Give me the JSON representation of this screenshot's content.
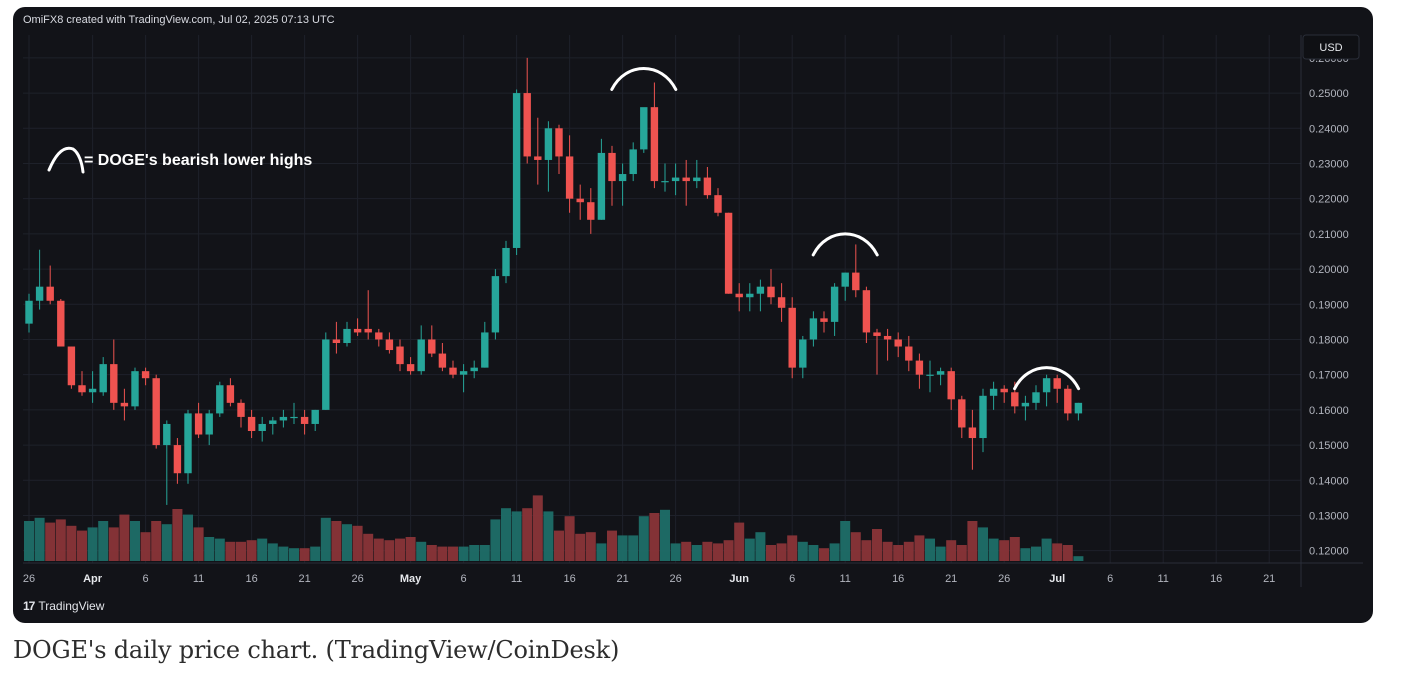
{
  "header": {
    "credit": "OmiFX8 created with TradingView.com, Jul 02, 2025 07:13 UTC"
  },
  "currency": "USD",
  "annotation": {
    "legend_text": "= DOGE's bearish lower highs"
  },
  "footer": {
    "brand": "TradingView",
    "brand_mark": "17"
  },
  "caption": "DOGE's daily price chart. (TradingView/CoinDesk)",
  "colors": {
    "up": "#26a69a",
    "down": "#ef5350",
    "background": "#121318",
    "grid": "#1e212a",
    "axis_text": "#b2b5be"
  },
  "chart_data": {
    "type": "candlestick",
    "title": "",
    "xlabel": "",
    "ylabel": "",
    "ylim": [
      0.1165,
      0.2665
    ],
    "y_ticks": [
      "0.26000",
      "0.25000",
      "0.24000",
      "0.23000",
      "0.22000",
      "0.21000",
      "0.20000",
      "0.19000",
      "0.18000",
      "0.17000",
      "0.16000",
      "0.15000",
      "0.14000",
      "0.13000",
      "0.12000"
    ],
    "x_tick_labels": [
      {
        "label": "26",
        "index": 0
      },
      {
        "label": "Apr",
        "index": 6
      },
      {
        "label": "6",
        "index": 11
      },
      {
        "label": "11",
        "index": 16
      },
      {
        "label": "16",
        "index": 21
      },
      {
        "label": "21",
        "index": 26
      },
      {
        "label": "26",
        "index": 31
      },
      {
        "label": "May",
        "index": 36
      },
      {
        "label": "6",
        "index": 41
      },
      {
        "label": "11",
        "index": 46
      },
      {
        "label": "16",
        "index": 51
      },
      {
        "label": "21",
        "index": 56
      },
      {
        "label": "26",
        "index": 61
      },
      {
        "label": "Jun",
        "index": 67
      },
      {
        "label": "6",
        "index": 72
      },
      {
        "label": "11",
        "index": 77
      },
      {
        "label": "16",
        "index": 82
      },
      {
        "label": "21",
        "index": 87
      },
      {
        "label": "26",
        "index": 92
      },
      {
        "label": "Jul",
        "index": 97
      },
      {
        "label": "6",
        "index": 102
      },
      {
        "label": "11",
        "index": 107
      },
      {
        "label": "16",
        "index": 112
      },
      {
        "label": "21",
        "index": 117
      }
    ],
    "ohlc": [
      [
        0.1845,
        0.193,
        0.182,
        0.191
      ],
      [
        0.191,
        0.2055,
        0.1885,
        0.195
      ],
      [
        0.195,
        0.201,
        0.19,
        0.191
      ],
      [
        0.191,
        0.1915,
        0.179,
        0.178
      ],
      [
        0.178,
        0.178,
        0.166,
        0.167
      ],
      [
        0.167,
        0.171,
        0.164,
        0.165
      ],
      [
        0.165,
        0.171,
        0.162,
        0.166
      ],
      [
        0.165,
        0.175,
        0.164,
        0.173
      ],
      [
        0.173,
        0.18,
        0.16,
        0.162
      ],
      [
        0.162,
        0.166,
        0.157,
        0.161
      ],
      [
        0.161,
        0.172,
        0.16,
        0.171
      ],
      [
        0.171,
        0.172,
        0.167,
        0.169
      ],
      [
        0.169,
        0.17,
        0.149,
        0.15
      ],
      [
        0.15,
        0.157,
        0.133,
        0.156
      ],
      [
        0.15,
        0.152,
        0.139,
        0.142
      ],
      [
        0.142,
        0.16,
        0.139,
        0.159
      ],
      [
        0.159,
        0.162,
        0.152,
        0.153
      ],
      [
        0.153,
        0.16,
        0.15,
        0.159
      ],
      [
        0.159,
        0.168,
        0.158,
        0.167
      ],
      [
        0.167,
        0.169,
        0.161,
        0.162
      ],
      [
        0.162,
        0.163,
        0.155,
        0.158
      ],
      [
        0.158,
        0.16,
        0.152,
        0.154
      ],
      [
        0.154,
        0.158,
        0.151,
        0.156
      ],
      [
        0.156,
        0.158,
        0.153,
        0.157
      ],
      [
        0.157,
        0.16,
        0.155,
        0.158
      ],
      [
        0.158,
        0.162,
        0.156,
        0.158
      ],
      [
        0.158,
        0.16,
        0.153,
        0.156
      ],
      [
        0.156,
        0.16,
        0.154,
        0.16
      ],
      [
        0.16,
        0.182,
        0.16,
        0.18
      ],
      [
        0.18,
        0.185,
        0.176,
        0.179
      ],
      [
        0.179,
        0.185,
        0.178,
        0.183
      ],
      [
        0.183,
        0.186,
        0.181,
        0.182
      ],
      [
        0.183,
        0.194,
        0.18,
        0.182
      ],
      [
        0.182,
        0.183,
        0.178,
        0.18
      ],
      [
        0.18,
        0.182,
        0.176,
        0.177
      ],
      [
        0.178,
        0.18,
        0.171,
        0.173
      ],
      [
        0.173,
        0.175,
        0.17,
        0.171
      ],
      [
        0.171,
        0.184,
        0.17,
        0.18
      ],
      [
        0.18,
        0.184,
        0.175,
        0.176
      ],
      [
        0.176,
        0.179,
        0.171,
        0.172
      ],
      [
        0.172,
        0.174,
        0.169,
        0.17
      ],
      [
        0.17,
        0.173,
        0.165,
        0.171
      ],
      [
        0.171,
        0.174,
        0.169,
        0.172
      ],
      [
        0.172,
        0.185,
        0.172,
        0.182
      ],
      [
        0.182,
        0.2,
        0.18,
        0.198
      ],
      [
        0.198,
        0.208,
        0.196,
        0.206
      ],
      [
        0.206,
        0.251,
        0.204,
        0.25
      ],
      [
        0.25,
        0.26,
        0.23,
        0.232
      ],
      [
        0.232,
        0.243,
        0.224,
        0.231
      ],
      [
        0.231,
        0.242,
        0.222,
        0.24
      ],
      [
        0.24,
        0.241,
        0.227,
        0.232
      ],
      [
        0.232,
        0.238,
        0.216,
        0.22
      ],
      [
        0.22,
        0.224,
        0.214,
        0.219
      ],
      [
        0.219,
        0.223,
        0.21,
        0.214
      ],
      [
        0.214,
        0.237,
        0.214,
        0.233
      ],
      [
        0.233,
        0.235,
        0.218,
        0.225
      ],
      [
        0.225,
        0.23,
        0.218,
        0.227
      ],
      [
        0.227,
        0.236,
        0.225,
        0.234
      ],
      [
        0.234,
        0.245,
        0.233,
        0.246
      ],
      [
        0.246,
        0.253,
        0.223,
        0.225
      ],
      [
        0.225,
        0.23,
        0.222,
        0.225
      ],
      [
        0.225,
        0.23,
        0.221,
        0.226
      ],
      [
        0.226,
        0.231,
        0.218,
        0.225
      ],
      [
        0.225,
        0.231,
        0.223,
        0.226
      ],
      [
        0.226,
        0.229,
        0.22,
        0.221
      ],
      [
        0.221,
        0.223,
        0.215,
        0.216
      ],
      [
        0.216,
        0.216,
        0.193,
        0.193
      ],
      [
        0.193,
        0.196,
        0.188,
        0.192
      ],
      [
        0.192,
        0.196,
        0.188,
        0.193
      ],
      [
        0.193,
        0.197,
        0.188,
        0.195
      ],
      [
        0.195,
        0.2,
        0.19,
        0.192
      ],
      [
        0.192,
        0.196,
        0.185,
        0.189
      ],
      [
        0.189,
        0.192,
        0.169,
        0.172
      ],
      [
        0.172,
        0.181,
        0.169,
        0.18
      ],
      [
        0.18,
        0.188,
        0.178,
        0.186
      ],
      [
        0.186,
        0.188,
        0.182,
        0.185
      ],
      [
        0.185,
        0.196,
        0.181,
        0.195
      ],
      [
        0.195,
        0.199,
        0.191,
        0.199
      ],
      [
        0.199,
        0.207,
        0.192,
        0.194
      ],
      [
        0.194,
        0.195,
        0.179,
        0.182
      ],
      [
        0.182,
        0.183,
        0.17,
        0.181
      ],
      [
        0.181,
        0.183,
        0.174,
        0.18
      ],
      [
        0.18,
        0.182,
        0.175,
        0.178
      ],
      [
        0.178,
        0.181,
        0.171,
        0.174
      ],
      [
        0.174,
        0.176,
        0.166,
        0.17
      ],
      [
        0.17,
        0.174,
        0.165,
        0.17
      ],
      [
        0.17,
        0.172,
        0.167,
        0.171
      ],
      [
        0.171,
        0.172,
        0.16,
        0.163
      ],
      [
        0.163,
        0.164,
        0.152,
        0.155
      ],
      [
        0.155,
        0.16,
        0.143,
        0.152
      ],
      [
        0.152,
        0.166,
        0.148,
        0.164
      ],
      [
        0.164,
        0.168,
        0.16,
        0.166
      ],
      [
        0.166,
        0.167,
        0.162,
        0.165
      ],
      [
        0.165,
        0.168,
        0.159,
        0.161
      ],
      [
        0.161,
        0.164,
        0.157,
        0.162
      ],
      [
        0.162,
        0.167,
        0.16,
        0.165
      ],
      [
        0.165,
        0.17,
        0.161,
        0.169
      ],
      [
        0.169,
        0.17,
        0.162,
        0.166
      ],
      [
        0.166,
        0.167,
        0.157,
        0.159
      ],
      [
        0.159,
        0.162,
        0.157,
        0.162
      ]
    ],
    "volume": [
      0.5,
      0.54,
      0.48,
      0.52,
      0.44,
      0.38,
      0.42,
      0.5,
      0.42,
      0.58,
      0.5,
      0.36,
      0.5,
      0.46,
      0.65,
      0.58,
      0.42,
      0.3,
      0.28,
      0.24,
      0.24,
      0.26,
      0.28,
      0.22,
      0.18,
      0.16,
      0.16,
      0.18,
      0.54,
      0.5,
      0.46,
      0.44,
      0.34,
      0.28,
      0.26,
      0.28,
      0.3,
      0.24,
      0.2,
      0.18,
      0.18,
      0.18,
      0.2,
      0.2,
      0.52,
      0.66,
      0.62,
      0.66,
      0.82,
      0.62,
      0.38,
      0.56,
      0.34,
      0.36,
      0.22,
      0.38,
      0.32,
      0.32,
      0.56,
      0.6,
      0.64,
      0.22,
      0.24,
      0.2,
      0.24,
      0.22,
      0.26,
      0.48,
      0.28,
      0.36,
      0.2,
      0.22,
      0.32,
      0.24,
      0.2,
      0.16,
      0.22,
      0.5,
      0.36,
      0.26,
      0.4,
      0.24,
      0.2,
      0.24,
      0.32,
      0.28,
      0.18,
      0.26,
      0.2,
      0.5,
      0.42,
      0.28,
      0.26,
      0.3,
      0.16,
      0.18,
      0.28,
      0.22,
      0.2,
      0.06
    ]
  }
}
